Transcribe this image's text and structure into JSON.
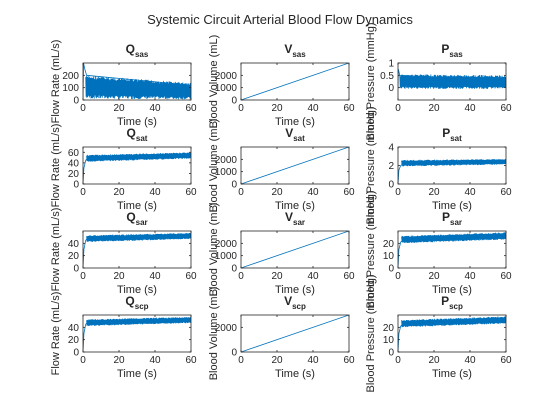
{
  "figure": {
    "title": "Systemic Circuit Arterial Blood Flow Dynamics"
  },
  "colors": {
    "line": "#0072bd",
    "axes": "#262626",
    "background": "#ffffff"
  },
  "chart_data": [
    {
      "type": "line",
      "title_main": "Q",
      "title_sub": "sas",
      "xlabel": "Time (s)",
      "ylabel": "Flow Rate (mL/s)",
      "xlim": [
        0,
        60
      ],
      "ylim": [
        0,
        300
      ],
      "xticks": [
        0,
        20,
        40,
        60
      ],
      "yticks": [
        0,
        100,
        200
      ],
      "series": [
        {
          "x": [
            0,
            0.3,
            1,
            2,
            60
          ],
          "y": [
            0,
            300,
            250,
            200,
            120
          ],
          "band": {
            "x": [
              1.5,
              60
            ],
            "low": [
              10,
              5
            ],
            "high": [
              200,
              140
            ]
          }
        }
      ]
    },
    {
      "type": "line",
      "title_main": "V",
      "title_sub": "sas",
      "xlabel": "Time (s)",
      "ylabel": "Blood Volume (mL)",
      "xlim": [
        0,
        60
      ],
      "ylim": [
        0,
        3000
      ],
      "xticks": [
        0,
        20,
        40,
        60
      ],
      "yticks": [
        0,
        1000,
        2000
      ],
      "series": [
        {
          "x": [
            0,
            60
          ],
          "y": [
            0,
            3000
          ]
        }
      ]
    },
    {
      "type": "line",
      "title_main": "P",
      "title_sub": "sas",
      "xlabel": "",
      "ylabel": "Blood Pressure (mmHg)",
      "xlim": [
        0,
        60
      ],
      "ylim": [
        -0.5,
        1
      ],
      "xticks": [
        0,
        20,
        40,
        60
      ],
      "yticks": [
        0,
        0.5,
        1
      ],
      "series": [
        {
          "x": [
            0,
            0.2,
            1,
            60
          ],
          "y": [
            0,
            0.75,
            0.5,
            0.3
          ],
          "band": {
            "x": [
              1,
              60
            ],
            "low": [
              -0.05,
              -0.05
            ],
            "high": [
              0.55,
              0.5
            ]
          }
        }
      ]
    },
    {
      "type": "line",
      "title_main": "Q",
      "title_sub": "sat",
      "xlabel": "Time (s)",
      "ylabel": "Flow Rate (mL/s)",
      "xlim": [
        0,
        60
      ],
      "ylim": [
        0,
        70
      ],
      "xticks": [
        0,
        20,
        40,
        60
      ],
      "yticks": [
        0,
        20,
        40,
        60
      ],
      "series": [
        {
          "x": [
            0,
            0.5,
            1.5,
            3
          ],
          "y": [
            0,
            30,
            45,
            50
          ],
          "band": {
            "x": [
              2,
              60
            ],
            "low": [
              42,
              48
            ],
            "high": [
              55,
              60
            ]
          }
        }
      ]
    },
    {
      "type": "line",
      "title_main": "V",
      "title_sub": "sat",
      "xlabel": "Time (s)",
      "ylabel": "Blood Volume (mL)",
      "xlim": [
        0,
        60
      ],
      "ylim": [
        0,
        3000
      ],
      "xticks": [
        0,
        20,
        40,
        60
      ],
      "yticks": [
        0,
        1000,
        2000
      ],
      "series": [
        {
          "x": [
            0,
            60
          ],
          "y": [
            0,
            3000
          ]
        }
      ]
    },
    {
      "type": "line",
      "title_main": "P",
      "title_sub": "sat",
      "xlabel": "Time (s)",
      "ylabel": "Blood Pressure (mmHg)",
      "xlim": [
        0,
        60
      ],
      "ylim": [
        0,
        4
      ],
      "xticks": [
        0,
        20,
        40,
        60
      ],
      "yticks": [
        0,
        2,
        4
      ],
      "series": [
        {
          "x": [
            0,
            0.5,
            1.5,
            3
          ],
          "y": [
            0,
            1.5,
            2.0,
            2.2
          ],
          "band": {
            "x": [
              2,
              60
            ],
            "low": [
              1.9,
              2.1
            ],
            "high": [
              2.6,
              2.7
            ]
          }
        }
      ]
    },
    {
      "type": "line",
      "title_main": "Q",
      "title_sub": "sar",
      "xlabel": "Time (s)",
      "ylabel": "Flow Rate (mL/s)",
      "xlim": [
        0,
        60
      ],
      "ylim": [
        0,
        60
      ],
      "xticks": [
        0,
        20,
        40,
        60
      ],
      "yticks": [
        0,
        20,
        40
      ],
      "series": [
        {
          "x": [
            0,
            0.5,
            1.5,
            3
          ],
          "y": [
            0,
            30,
            45,
            50
          ],
          "band": {
            "x": [
              2,
              60
            ],
            "low": [
              42,
              47
            ],
            "high": [
              53,
              57
            ]
          }
        }
      ]
    },
    {
      "type": "line",
      "title_main": "V",
      "title_sub": "sar",
      "xlabel": "Time (s)",
      "ylabel": "Blood Volume (mL)",
      "xlim": [
        0,
        60
      ],
      "ylim": [
        0,
        3000
      ],
      "xticks": [
        0,
        20,
        40,
        60
      ],
      "yticks": [
        0,
        1000,
        2000
      ],
      "series": [
        {
          "x": [
            0,
            60
          ],
          "y": [
            0,
            3000
          ]
        }
      ]
    },
    {
      "type": "line",
      "title_main": "P",
      "title_sub": "sar",
      "xlabel": "Time (s)",
      "ylabel": "Blood Pressure (mmHg)",
      "xlim": [
        0,
        60
      ],
      "ylim": [
        0,
        30
      ],
      "xticks": [
        0,
        20,
        40,
        60
      ],
      "yticks": [
        0,
        10,
        20
      ],
      "series": [
        {
          "x": [
            0,
            0.5,
            1.5,
            3
          ],
          "y": [
            0,
            15,
            21,
            23
          ],
          "band": {
            "x": [
              2,
              60
            ],
            "low": [
              20,
              23
            ],
            "high": [
              26,
              29
            ]
          }
        }
      ]
    },
    {
      "type": "line",
      "title_main": "Q",
      "title_sub": "scp",
      "xlabel": "Time (s)",
      "ylabel": "Flow Rate (mL/s)",
      "xlim": [
        0,
        60
      ],
      "ylim": [
        0,
        60
      ],
      "xticks": [
        0,
        20,
        40,
        60
      ],
      "yticks": [
        0,
        20,
        40
      ],
      "series": [
        {
          "x": [
            0,
            0.5,
            1.5,
            3
          ],
          "y": [
            0,
            30,
            45,
            50
          ],
          "band": {
            "x": [
              2,
              60
            ],
            "low": [
              42,
              47
            ],
            "high": [
              53,
              57
            ]
          }
        }
      ]
    },
    {
      "type": "line",
      "title_main": "V",
      "title_sub": "scp",
      "xlabel": "Time (s)",
      "ylabel": "Blood Volume (mL)",
      "xlim": [
        0,
        60
      ],
      "ylim": [
        0,
        3000
      ],
      "xticks": [
        0,
        20,
        40,
        60
      ],
      "yticks": [
        0,
        2000
      ],
      "series": [
        {
          "x": [
            0,
            60
          ],
          "y": [
            0,
            3000
          ]
        }
      ]
    },
    {
      "type": "line",
      "title_main": "P",
      "title_sub": "scp",
      "xlabel": "Time (s)",
      "ylabel": "Blood Pressure (mmHg)",
      "xlim": [
        0,
        60
      ],
      "ylim": [
        0,
        30
      ],
      "xticks": [
        0,
        20,
        40,
        60
      ],
      "yticks": [
        0,
        10,
        20
      ],
      "series": [
        {
          "x": [
            0,
            0.5,
            1.5,
            3
          ],
          "y": [
            0,
            15,
            21,
            23
          ],
          "band": {
            "x": [
              2,
              60
            ],
            "low": [
              20,
              23
            ],
            "high": [
              26,
              29
            ]
          }
        }
      ]
    }
  ]
}
